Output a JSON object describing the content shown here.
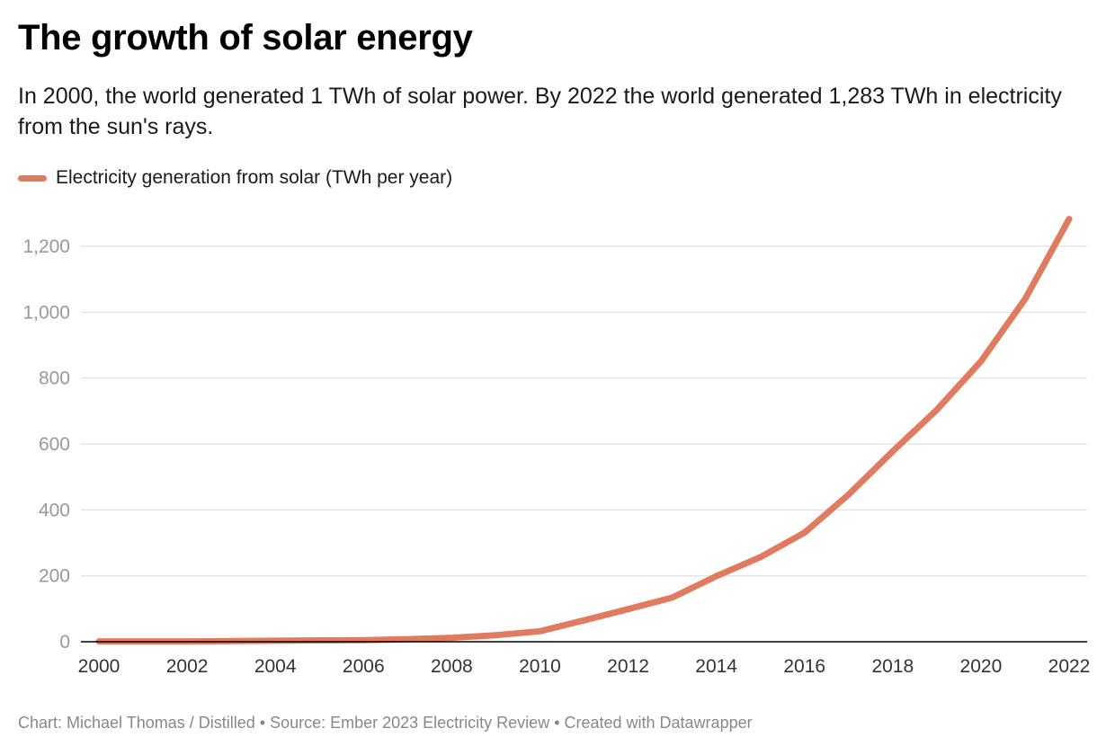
{
  "title": "The growth of solar energy",
  "subtitle": "In 2000, the world generated 1 TWh of solar power. By 2022 the world generated 1,283 TWh in electricity from the sun's rays.",
  "footer": "Chart: Michael Thomas / Distilled • Source: Ember 2023 Electricity Review • Created with Datawrapper",
  "colors": {
    "series": "#e07b60",
    "gridline": "#e0e0e0",
    "baseline": "#000000"
  },
  "chart_data": {
    "type": "line",
    "title": "The growth of solar energy",
    "xlabel": "",
    "ylabel": "",
    "xlim": [
      2000,
      2022
    ],
    "ylim": [
      0,
      1283
    ],
    "grid": true,
    "legend_position": "top-left",
    "x_ticks": [
      "2000",
      "2002",
      "2004",
      "2006",
      "2008",
      "2010",
      "2012",
      "2014",
      "2016",
      "2018",
      "2020",
      "2022"
    ],
    "y_ticks": [
      {
        "value": 0,
        "label": "0"
      },
      {
        "value": 200,
        "label": "200"
      },
      {
        "value": 400,
        "label": "400"
      },
      {
        "value": 600,
        "label": "600"
      },
      {
        "value": 800,
        "label": "800"
      },
      {
        "value": 1000,
        "label": "1,000"
      },
      {
        "value": 1200,
        "label": "1,200"
      }
    ],
    "series": [
      {
        "name": "Electricity generation from solar (TWh per year)",
        "x": [
          2000,
          2001,
          2002,
          2003,
          2004,
          2005,
          2006,
          2007,
          2008,
          2009,
          2010,
          2011,
          2012,
          2013,
          2014,
          2015,
          2016,
          2017,
          2018,
          2019,
          2020,
          2021,
          2022
        ],
        "y": [
          1,
          1,
          1,
          2,
          3,
          4,
          5,
          8,
          12,
          20,
          32,
          65,
          99,
          134,
          199,
          257,
          331,
          447,
          578,
          704,
          851,
          1040,
          1283
        ]
      }
    ]
  }
}
